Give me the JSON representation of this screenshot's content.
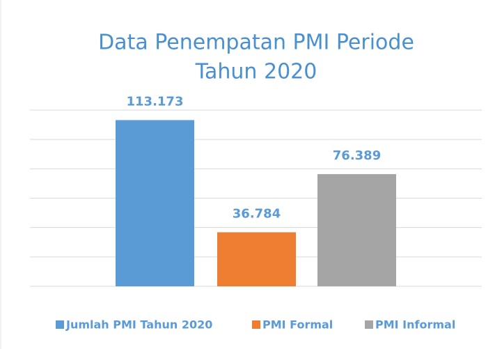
{
  "chart_data": {
    "type": "bar",
    "title": [
      "Data Penempatan PMI Periode",
      "Tahun 2020"
    ],
    "series": [
      {
        "name": "Jumlah PMI Tahun 2020",
        "color": "#5b9bd5",
        "values": [
          113173
        ],
        "value_labels": [
          "113.173"
        ]
      },
      {
        "name": "PMI Formal",
        "color": "#ed7d31",
        "values": [
          36784
        ],
        "value_labels": [
          "36.784"
        ]
      },
      {
        "name": "PMI Informal",
        "color": "#a5a5a5",
        "values": [
          76389
        ],
        "value_labels": [
          "76.389"
        ]
      }
    ],
    "ylim": [
      0,
      120000
    ],
    "yticks": [
      0,
      20000,
      40000,
      60000,
      80000,
      100000,
      120000
    ],
    "grid": true,
    "legend": "bottom"
  }
}
